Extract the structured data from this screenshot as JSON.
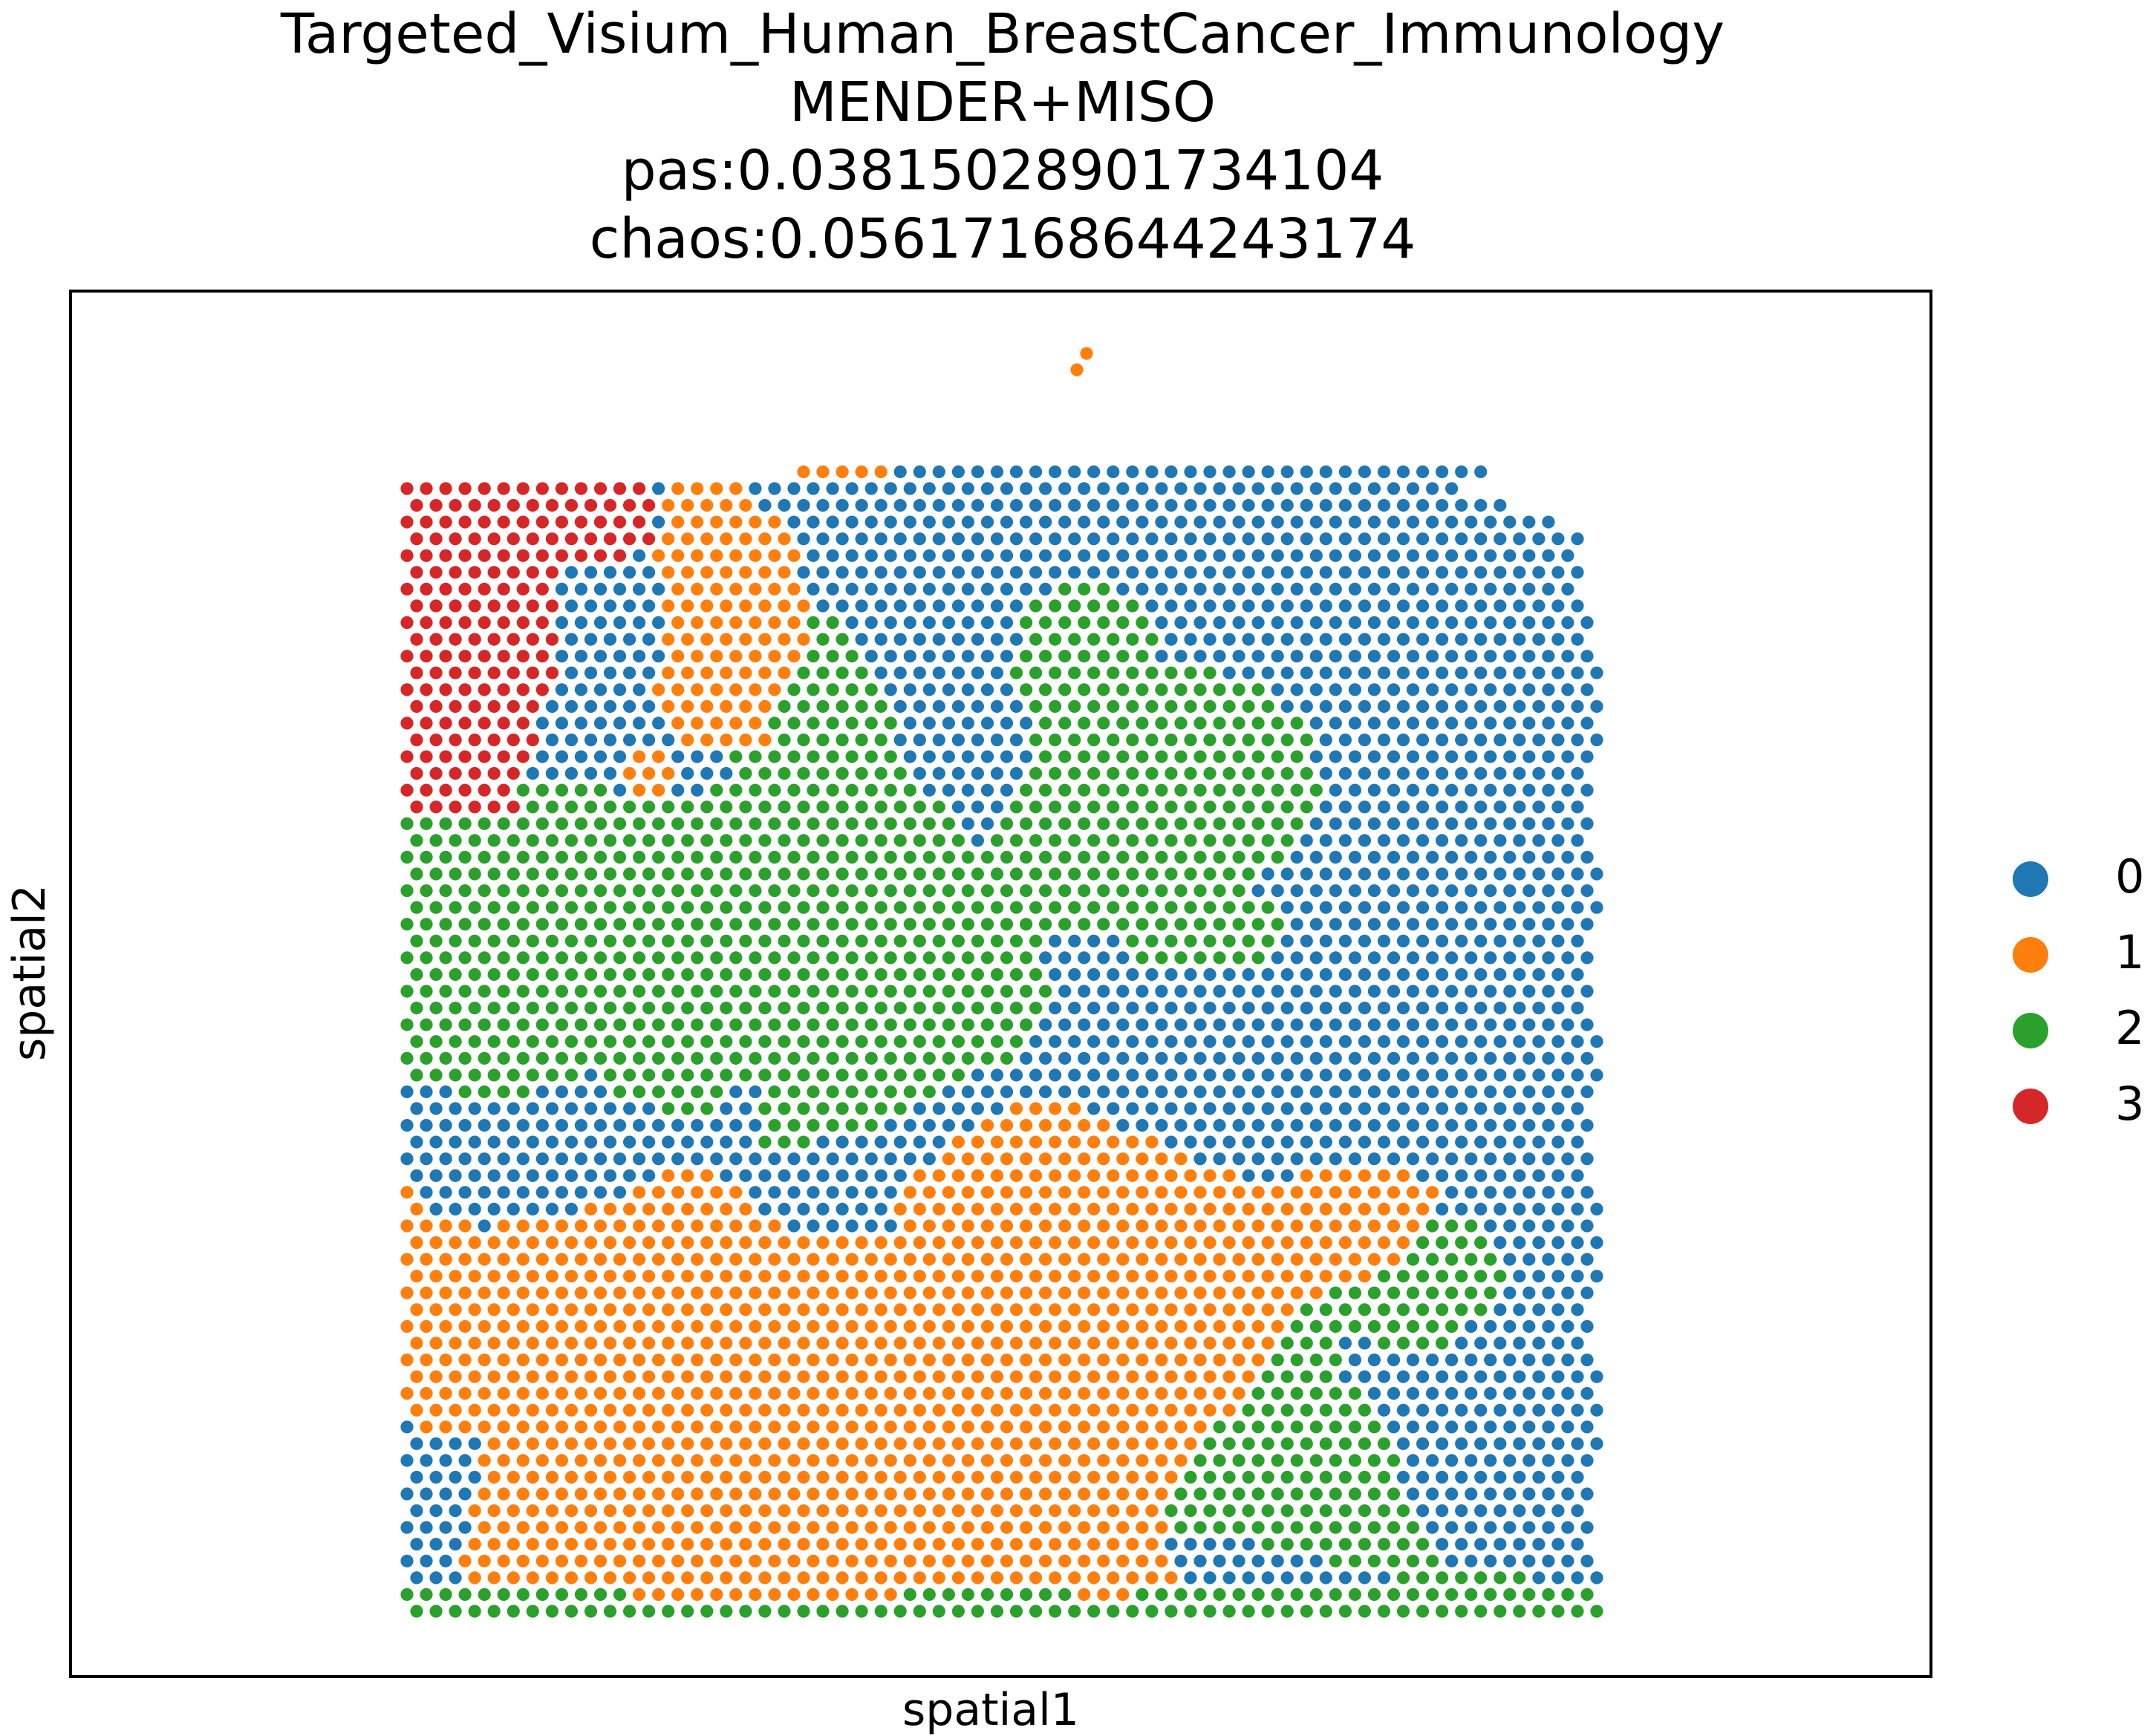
{
  "title_lines": [
    "Targeted_Visium_Human_BreastCancer_Immunology",
    "MENDER+MISO",
    "pas:0.03815028901734104",
    "chaos:0.05617168644243174"
  ],
  "chart_data": {
    "type": "scatter",
    "xlabel": "spatial1",
    "ylabel": "spatial2",
    "axis_ticks": false,
    "grid": false,
    "legend_placement": "right",
    "series": [
      {
        "name": "0",
        "color": "#1f77b4"
      },
      {
        "name": "1",
        "color": "#ff7f0e"
      },
      {
        "name": "2",
        "color": "#2ca02c"
      },
      {
        "name": "3",
        "color": "#d62728"
      }
    ],
    "grid_layout": {
      "rows": 68,
      "cols": 62,
      "note_rows": "row 0 = top of tissue; columns shift by half-step on odd rows"
    },
    "default_cluster": "0",
    "region_polygons": [
      {
        "cluster": "2",
        "points": [
          [
            0.2,
            0.27
          ],
          [
            0.24,
            0.27
          ],
          [
            0.27,
            0.26
          ],
          [
            0.28,
            0.16
          ],
          [
            0.33,
            0.1
          ],
          [
            0.36,
            0.12
          ],
          [
            0.4,
            0.18
          ],
          [
            0.42,
            0.26
          ],
          [
            0.47,
            0.3
          ],
          [
            0.52,
            0.38
          ],
          [
            0.55,
            0.45
          ],
          [
            0.52,
            0.5
          ],
          [
            0.48,
            0.52
          ],
          [
            0.45,
            0.54
          ],
          [
            0.41,
            0.56
          ],
          [
            0.36,
            0.58
          ],
          [
            0.3,
            0.59
          ],
          [
            0.26,
            0.57
          ],
          [
            0.2,
            0.55
          ],
          [
            0.17,
            0.54
          ],
          [
            0.16,
            0.52
          ],
          [
            0.12,
            0.53
          ],
          [
            0.07,
            0.55
          ],
          [
            0.03,
            0.53
          ],
          [
            0.0,
            0.52
          ],
          [
            0.0,
            0.26
          ]
        ]
      },
      {
        "cluster": "2",
        "points": [
          [
            0.52,
            0.1
          ],
          [
            0.58,
            0.08
          ],
          [
            0.62,
            0.11
          ],
          [
            0.63,
            0.15
          ],
          [
            0.71,
            0.17
          ],
          [
            0.76,
            0.22
          ],
          [
            0.77,
            0.27
          ],
          [
            0.75,
            0.32
          ],
          [
            0.71,
            0.35
          ],
          [
            0.74,
            0.4
          ],
          [
            0.7,
            0.43
          ],
          [
            0.63,
            0.43
          ],
          [
            0.58,
            0.39
          ],
          [
            0.54,
            0.4
          ],
          [
            0.5,
            0.39
          ],
          [
            0.47,
            0.34
          ],
          [
            0.5,
            0.28
          ],
          [
            0.53,
            0.22
          ],
          [
            0.51,
            0.16
          ]
        ]
      },
      {
        "cluster": "2",
        "points": [
          [
            0.76,
            0.6
          ],
          [
            0.82,
            0.62
          ],
          [
            0.91,
            0.66
          ],
          [
            0.93,
            0.7
          ],
          [
            0.9,
            0.74
          ],
          [
            0.88,
            0.76
          ],
          [
            0.83,
            0.77
          ],
          [
            0.79,
            0.75
          ],
          [
            0.78,
            0.78
          ],
          [
            0.82,
            0.84
          ],
          [
            0.85,
            0.92
          ],
          [
            0.87,
            0.96
          ],
          [
            0.8,
            0.96
          ],
          [
            0.71,
            0.94
          ],
          [
            0.63,
            0.93
          ],
          [
            0.6,
            0.86
          ],
          [
            0.64,
            0.82
          ],
          [
            0.68,
            0.76
          ],
          [
            0.72,
            0.68
          ]
        ]
      },
      {
        "cluster": "2",
        "points": [
          [
            0.47,
            0.93
          ],
          [
            0.55,
            0.93
          ],
          [
            0.55,
            1.01
          ],
          [
            0.46,
            1.01
          ],
          [
            0.45,
            0.97
          ]
        ]
      },
      {
        "cluster": "2",
        "points": [
          [
            0.0,
            0.97
          ],
          [
            0.3,
            0.98
          ],
          [
            0.62,
            0.97
          ],
          [
            0.8,
            0.98
          ],
          [
            0.86,
            0.96
          ],
          [
            1.01,
            0.98
          ],
          [
            1.01,
            1.01
          ],
          [
            0.0,
            1.01
          ]
        ]
      },
      {
        "cluster": "1",
        "points": [
          [
            0.22,
            0.0
          ],
          [
            0.29,
            0.0
          ],
          [
            0.33,
            0.06
          ],
          [
            0.34,
            0.12
          ],
          [
            0.32,
            0.18
          ],
          [
            0.3,
            0.23
          ],
          [
            0.23,
            0.23
          ],
          [
            0.21,
            0.18
          ],
          [
            0.22,
            0.12
          ],
          [
            0.21,
            0.06
          ]
        ]
      },
      {
        "cluster": "1",
        "points": [
          [
            0.18,
            0.23
          ],
          [
            0.22,
            0.23
          ],
          [
            0.22,
            0.27
          ],
          [
            0.18,
            0.27
          ]
        ]
      },
      {
        "cluster": "1",
        "points": [
          [
            0.5,
            0.55
          ],
          [
            0.57,
            0.55
          ],
          [
            0.64,
            0.59
          ],
          [
            0.72,
            0.62
          ],
          [
            0.78,
            0.6
          ],
          [
            0.84,
            0.6
          ],
          [
            0.87,
            0.63
          ],
          [
            0.85,
            0.67
          ],
          [
            0.8,
            0.71
          ],
          [
            0.76,
            0.72
          ],
          [
            0.73,
            0.76
          ],
          [
            0.7,
            0.81
          ],
          [
            0.66,
            0.86
          ],
          [
            0.63,
            0.91
          ],
          [
            0.65,
            0.98
          ],
          [
            0.58,
            0.99
          ],
          [
            0.53,
            0.98
          ],
          [
            0.45,
            0.98
          ],
          [
            0.38,
            0.99
          ],
          [
            0.3,
            0.99
          ],
          [
            0.06,
            0.98
          ],
          [
            0.03,
            0.93
          ],
          [
            0.06,
            0.88
          ],
          [
            0.02,
            0.86
          ],
          [
            0.0,
            0.82
          ],
          [
            0.0,
            0.6
          ],
          [
            0.02,
            0.64
          ],
          [
            0.06,
            0.66
          ],
          [
            0.12,
            0.65
          ],
          [
            0.18,
            0.63
          ],
          [
            0.22,
            0.61
          ],
          [
            0.26,
            0.61
          ],
          [
            0.33,
            0.67
          ],
          [
            0.4,
            0.67
          ],
          [
            0.43,
            0.61
          ],
          [
            0.46,
            0.58
          ]
        ]
      },
      {
        "cluster": "3",
        "points": [
          [
            0.0,
            0.0
          ],
          [
            0.21,
            0.0
          ],
          [
            0.21,
            0.05
          ],
          [
            0.14,
            0.08
          ],
          [
            0.13,
            0.13
          ],
          [
            0.12,
            0.19
          ],
          [
            0.1,
            0.24
          ],
          [
            0.09,
            0.29
          ],
          [
            0.0,
            0.29
          ]
        ]
      },
      {
        "cluster": "0",
        "points": [
          [
            0.13,
            0.07
          ],
          [
            0.2,
            0.06
          ],
          [
            0.2,
            0.11
          ],
          [
            0.16,
            0.15
          ],
          [
            0.13,
            0.16
          ]
        ]
      },
      {
        "cluster": "0",
        "points": [
          [
            0.25,
            0.54
          ],
          [
            0.3,
            0.53
          ],
          [
            0.3,
            0.58
          ],
          [
            0.26,
            0.59
          ]
        ]
      },
      {
        "cluster": "0",
        "points": [
          [
            0.0,
            0.84
          ],
          [
            0.06,
            0.84
          ],
          [
            0.06,
            0.9
          ],
          [
            0.04,
            0.95
          ],
          [
            0.0,
            0.97
          ]
        ]
      }
    ],
    "outlier_points": [
      {
        "cluster": "1",
        "position": "above-tissue",
        "count": 2
      }
    ]
  },
  "legend": [
    {
      "label": "0",
      "color": "#1f77b4"
    },
    {
      "label": "1",
      "color": "#ff7f0e"
    },
    {
      "label": "2",
      "color": "#2ca02c"
    },
    {
      "label": "3",
      "color": "#d62728"
    }
  ]
}
